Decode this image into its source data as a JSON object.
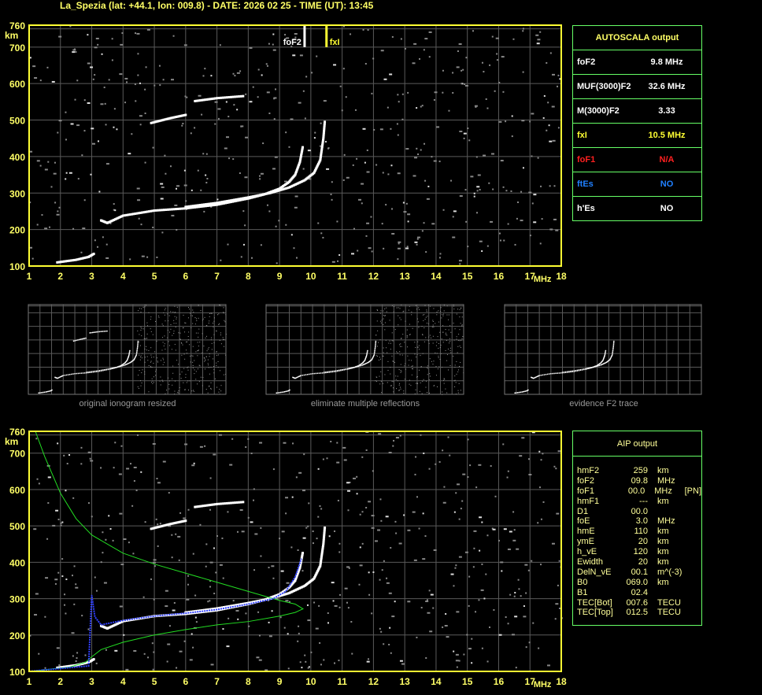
{
  "title": "La_Spezia (lat: +44.1, lon: 009.8) - DATE: 2026 02 25 - TIME (UT): 13:45",
  "autoscala": {
    "header": "AUTOSCALA output",
    "rows": [
      {
        "key": "foF2",
        "value": "9.8 MHz",
        "color": "#ffffff"
      },
      {
        "key": "MUF(3000)F2",
        "value": "32.6 MHz",
        "color": "#ffffff"
      },
      {
        "key": "M(3000)F2",
        "value": "3.33",
        "color": "#ffffff"
      },
      {
        "key": "fxI",
        "value": "10.5 MHz",
        "color": "#ffff33"
      },
      {
        "key": "foF1",
        "value": "N/A",
        "color": "#ff2020"
      },
      {
        "key": "ftEs",
        "value": "NO",
        "color": "#2080ff"
      },
      {
        "key": "h'Es",
        "value": "NO",
        "color": "#ffffff"
      }
    ]
  },
  "aip": {
    "header": "AIP output",
    "rows": [
      [
        "hmF2",
        "259",
        "km",
        ""
      ],
      [
        "foF2",
        "09.8",
        "MHz",
        ""
      ],
      [
        "foF1",
        "00.0",
        "MHz",
        "[PN]"
      ],
      [
        "hmF1",
        "---",
        "km",
        ""
      ],
      [
        "D1",
        "00.0",
        "",
        ""
      ],
      [
        "foE",
        "3.0",
        "MHz",
        ""
      ],
      [
        "hmE",
        "110",
        "km",
        ""
      ],
      [
        "ymE",
        "20",
        "km",
        ""
      ],
      [
        "h_vE",
        "120",
        "km",
        ""
      ],
      [
        "Ewidth",
        "20",
        "km",
        ""
      ],
      [
        "DelN_vE",
        "00.1",
        "m^(-3)",
        ""
      ],
      [
        "B0",
        "069.0",
        "km",
        ""
      ],
      [
        "B1",
        "02.4",
        "",
        ""
      ],
      [
        "TEC[Bot]",
        "007.6",
        "TECU",
        ""
      ],
      [
        "TEC[Top]",
        "012.5",
        "TECU",
        ""
      ]
    ]
  },
  "thumbnails": [
    "original ionogram resized",
    "eliminate multiple reflections",
    "evidence F2 trace"
  ],
  "chart_data": {
    "type": "scatter",
    "xlabel": "MHz",
    "ylabel": "km",
    "xlim": [
      1,
      18
    ],
    "ylim": [
      100,
      760
    ],
    "xticks": [
      "1",
      "2",
      "3",
      "4",
      "5",
      "6",
      "7",
      "8",
      "9",
      "10",
      "11",
      "12",
      "13",
      "14",
      "15",
      "16",
      "17",
      "18"
    ],
    "yticks": [
      "100",
      "200",
      "300",
      "400",
      "500",
      "600",
      "700",
      "760"
    ],
    "grid": true,
    "markers": [
      {
        "label": "foF2",
        "x": 9.8,
        "color": "#ffffff"
      },
      {
        "label": "fxI",
        "x": 10.5,
        "color": "#ffff33"
      }
    ],
    "traces": {
      "o_mode": [
        [
          3.3,
          225
        ],
        [
          3.5,
          218
        ],
        [
          4,
          238
        ],
        [
          5,
          252
        ],
        [
          6,
          258
        ],
        [
          7,
          268
        ],
        [
          8,
          285
        ],
        [
          8.5,
          296
        ],
        [
          9,
          312
        ],
        [
          9.3,
          330
        ],
        [
          9.5,
          350
        ],
        [
          9.65,
          385
        ],
        [
          9.75,
          430
        ]
      ],
      "x_mode": [
        [
          6,
          262
        ],
        [
          7,
          273
        ],
        [
          8,
          288
        ],
        [
          8.7,
          300
        ],
        [
          9.3,
          315
        ],
        [
          9.8,
          335
        ],
        [
          10.1,
          355
        ],
        [
          10.3,
          390
        ],
        [
          10.4,
          450
        ],
        [
          10.45,
          500
        ]
      ],
      "low_e": [
        [
          1.9,
          110
        ],
        [
          2.5,
          117
        ],
        [
          2.9,
          125
        ],
        [
          3.1,
          135
        ]
      ],
      "multiple_1": [
        [
          4.9,
          492
        ],
        [
          5.5,
          505
        ],
        [
          6.05,
          515
        ]
      ],
      "multiple_2": [
        [
          6.3,
          552
        ],
        [
          7,
          560
        ],
        [
          7.9,
          566
        ]
      ]
    },
    "aip_profile": [
      [
        1.2,
        760
      ],
      [
        1.5,
        690
      ],
      [
        2,
        590
      ],
      [
        2.5,
        520
      ],
      [
        3,
        475
      ],
      [
        4,
        425
      ],
      [
        5,
        395
      ],
      [
        6,
        370
      ],
      [
        7,
        345
      ],
      [
        8,
        320
      ],
      [
        9,
        295
      ],
      [
        9.5,
        285
      ],
      [
        9.75,
        272
      ],
      [
        9.5,
        262
      ],
      [
        9,
        252
      ],
      [
        8,
        237
      ],
      [
        7,
        228
      ],
      [
        6,
        215
      ],
      [
        5,
        200
      ],
      [
        4,
        180
      ],
      [
        3.3,
        160
      ],
      [
        3,
        140
      ],
      [
        2.8,
        125
      ],
      [
        2.3,
        112
      ],
      [
        1,
        100
      ]
    ],
    "aip_fitted_trace": [
      [
        1,
        100
      ],
      [
        2,
        108
      ],
      [
        2.9,
        115
      ],
      [
        3.0,
        310
      ],
      [
        3.1,
        250
      ],
      [
        3.3,
        228
      ],
      [
        4,
        240
      ],
      [
        5,
        252
      ],
      [
        6,
        260
      ],
      [
        7,
        270
      ],
      [
        8,
        285
      ],
      [
        8.8,
        300
      ],
      [
        9.2,
        320
      ],
      [
        9.5,
        360
      ],
      [
        9.7,
        410
      ]
    ]
  }
}
